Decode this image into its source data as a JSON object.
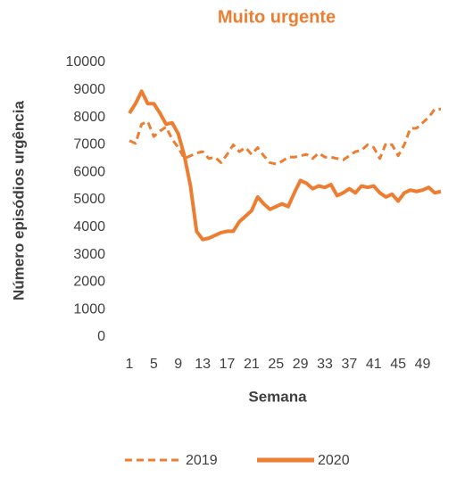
{
  "chart_data": {
    "type": "line",
    "title": "Muito urgente",
    "x_label": "Semana",
    "y_label": "Número episódios urgência",
    "x": [
      1,
      2,
      3,
      4,
      5,
      6,
      7,
      8,
      9,
      10,
      11,
      12,
      13,
      14,
      15,
      16,
      17,
      18,
      19,
      20,
      21,
      22,
      23,
      24,
      25,
      26,
      27,
      28,
      29,
      30,
      31,
      32,
      33,
      34,
      35,
      36,
      37,
      38,
      39,
      40,
      41,
      42,
      43,
      44,
      45,
      46,
      47,
      48,
      49,
      50,
      51,
      52
    ],
    "xlim": [
      1,
      52
    ],
    "xticks": [
      1,
      5,
      9,
      13,
      17,
      21,
      25,
      29,
      33,
      37,
      41,
      45,
      49
    ],
    "ylim": [
      0,
      10000
    ],
    "yticks": [
      0,
      1000,
      2000,
      3000,
      4000,
      5000,
      6000,
      7000,
      8000,
      9000,
      10000
    ],
    "grid": false,
    "legend": "bottom",
    "series": [
      {
        "name": "2019",
        "color": "#ED7D31",
        "dash": true,
        "values": [
          7150,
          7050,
          7750,
          7850,
          7300,
          7500,
          7650,
          7200,
          6900,
          6500,
          6600,
          6700,
          6750,
          6500,
          6550,
          6350,
          6650,
          7000,
          6750,
          6900,
          6650,
          6900,
          6600,
          6350,
          6300,
          6400,
          6550,
          6550,
          6600,
          6650,
          6500,
          6700,
          6550,
          6550,
          6500,
          6450,
          6600,
          6750,
          6800,
          7000,
          6900,
          6500,
          7050,
          7000,
          6600,
          7000,
          7600,
          7600,
          7800,
          8000,
          8300,
          8300
        ]
      },
      {
        "name": "2020",
        "color": "#ED7D31",
        "dash": false,
        "values": [
          8150,
          8500,
          8950,
          8500,
          8500,
          8150,
          7750,
          7800,
          7400,
          6600,
          5500,
          3850,
          3550,
          3600,
          3700,
          3800,
          3850,
          3850,
          4200,
          4400,
          4600,
          5100,
          4850,
          4650,
          4750,
          4850,
          4750,
          5250,
          5700,
          5600,
          5400,
          5500,
          5450,
          5550,
          5150,
          5250,
          5400,
          5250,
          5500,
          5450,
          5500,
          5250,
          5100,
          5200,
          4950,
          5250,
          5350,
          5300,
          5350,
          5450,
          5250,
          5300
        ]
      }
    ]
  }
}
